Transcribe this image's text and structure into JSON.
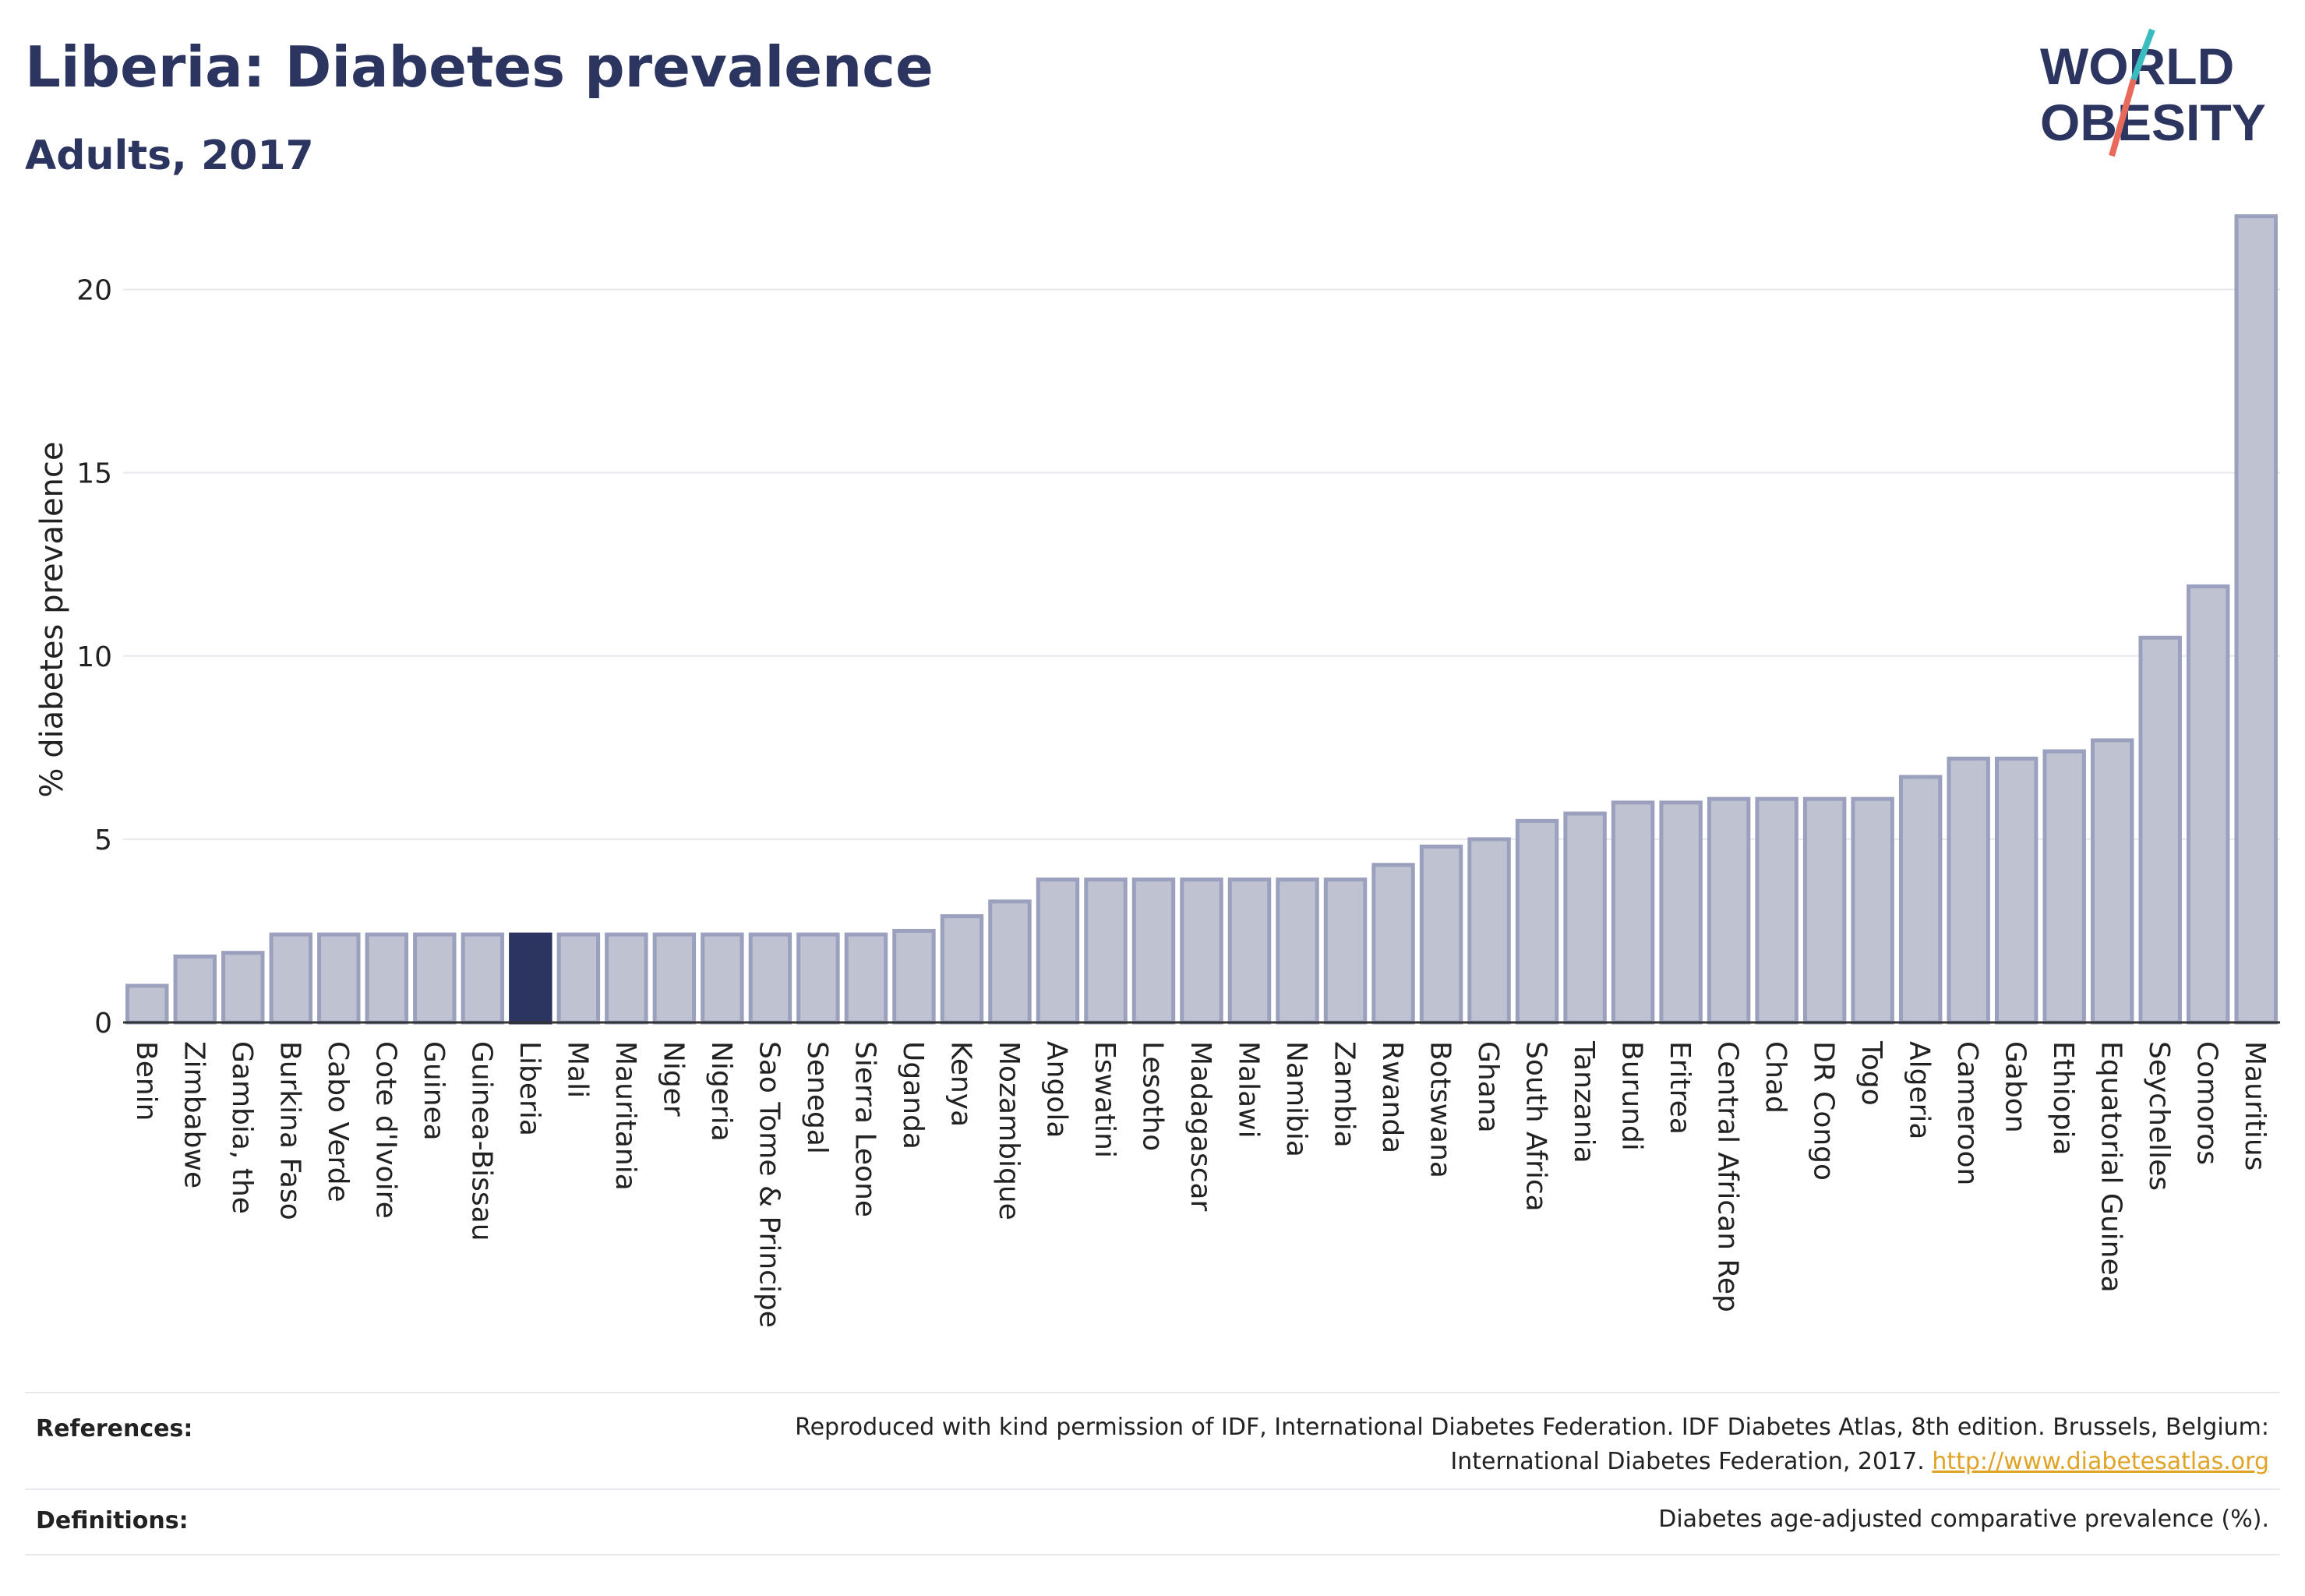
{
  "title": "Liberia: Diabetes prevalence",
  "subtitle": "Adults, 2017",
  "logo": {
    "line1": "WORLD",
    "line2": "OBESITY"
  },
  "colors": {
    "bar": "#bfc3d1",
    "bar_border": "#9aa0bd",
    "highlight": "#2b3560",
    "grid": "#e6e8ee"
  },
  "chart_data": {
    "type": "bar",
    "ylabel": "% diabetes prevalence",
    "ylim": [
      0,
      22.5
    ],
    "yticks": [
      0,
      5,
      10,
      15,
      20
    ],
    "highlight": "Liberia",
    "categories": [
      "Benin",
      "Zimbabwe",
      "Gambia, the",
      "Burkina Faso",
      "Cabo Verde",
      "Cote d'Ivoire",
      "Guinea",
      "Guinea-Bissau",
      "Liberia",
      "Mali",
      "Mauritania",
      "Niger",
      "Nigeria",
      "Sao Tome & Principe",
      "Senegal",
      "Sierra Leone",
      "Uganda",
      "Kenya",
      "Mozambique",
      "Angola",
      "Eswatini",
      "Lesotho",
      "Madagascar",
      "Malawi",
      "Namibia",
      "Zambia",
      "Rwanda",
      "Botswana",
      "Ghana",
      "South Africa",
      "Tanzania",
      "Burundi",
      "Eritrea",
      "Central African Rep",
      "Chad",
      "DR Congo",
      "Togo",
      "Algeria",
      "Cameroon",
      "Gabon",
      "Ethiopia",
      "Equatorial Guinea",
      "Seychelles",
      "Comoros",
      "Mauritius"
    ],
    "values": [
      1.0,
      1.8,
      1.9,
      2.4,
      2.4,
      2.4,
      2.4,
      2.4,
      2.4,
      2.4,
      2.4,
      2.4,
      2.4,
      2.4,
      2.4,
      2.4,
      2.5,
      2.9,
      3.3,
      3.9,
      3.9,
      3.9,
      3.9,
      3.9,
      3.9,
      3.9,
      4.3,
      4.8,
      5.0,
      5.5,
      5.7,
      6.0,
      6.0,
      6.1,
      6.1,
      6.1,
      6.1,
      6.7,
      7.2,
      7.2,
      7.4,
      7.7,
      10.5,
      11.9,
      22.0
    ]
  },
  "footer": {
    "references_label": "References:",
    "references_text_1": "Reproduced with kind permission of IDF, International Diabetes Federation. IDF Diabetes Atlas, 8th edition. Brussels, Belgium:",
    "references_text_2": "International Diabetes Federation, 2017.",
    "references_link": "http://www.diabetesatlas.org",
    "definitions_label": "Definitions:",
    "definitions_text": "Diabetes age-adjusted comparative prevalence (%)."
  }
}
